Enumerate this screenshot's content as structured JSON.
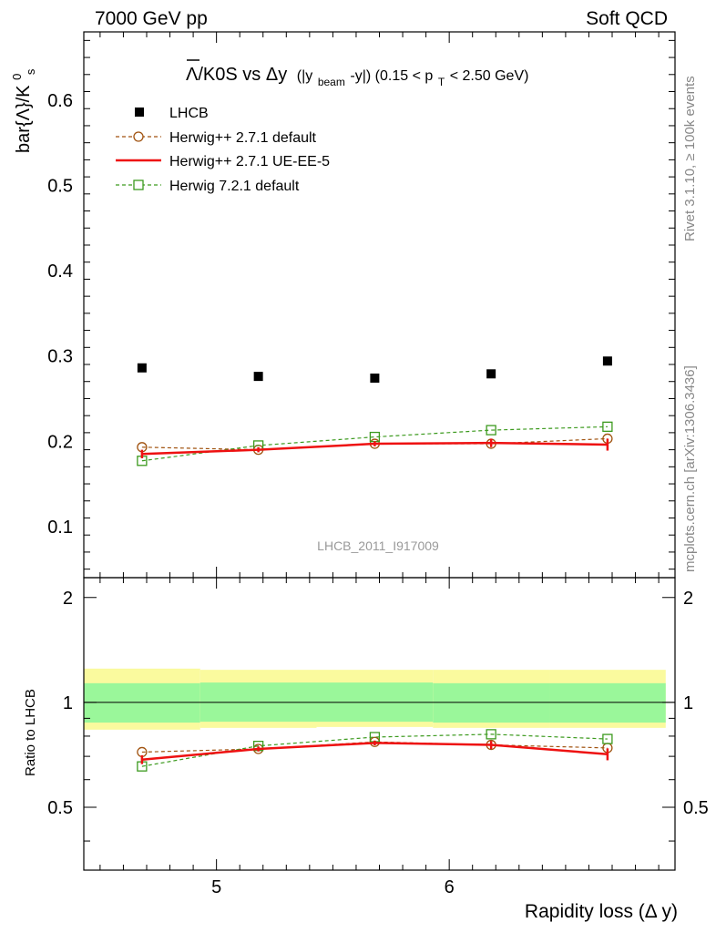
{
  "header": {
    "left": "7000 GeV pp",
    "right": "Soft QCD"
  },
  "side_labels": {
    "rivet": "Rivet 3.1.10, ≥ 100k events",
    "mcplots": "mcplots.cern.ch [arXiv:1306.3436]"
  },
  "chart_data": {
    "type": "scatter",
    "title_main": "Λ/K0S vs Δy",
    "title_sub": "(|y",
    "title_sub_index": "beam",
    "title_sub_rest": "-y|) (0.15 < p",
    "title_pt_index": "T",
    "title_tail": " < 2.50 GeV)",
    "ylabel_main": "bar{Λ}/K",
    "ylabel_sup": "0",
    "ylabel_sub": "s",
    "xlabel": "Rapidity loss (Δ y)",
    "ratio_ylabel": "Ratio to LHCB",
    "watermark": "LHCB_2011_I917009",
    "xlim": [
      4.43,
      6.97
    ],
    "ylim": [
      0.04,
      0.68
    ],
    "ratio_ylim": [
      0.33,
      2.28
    ],
    "x_ticks": [
      "5",
      "6"
    ],
    "y_ticks": [
      "0.1",
      "0.2",
      "0.3",
      "0.4",
      "0.5",
      "0.6"
    ],
    "ratio_ticks": [
      "0.5",
      "1",
      "2"
    ],
    "x_bins": [
      4.43,
      4.93,
      5.43,
      5.93,
      6.43,
      6.93
    ],
    "x": [
      4.68,
      5.18,
      5.68,
      6.18,
      6.68
    ],
    "series": [
      {
        "name": "LHCB",
        "values": [
          0.286,
          0.276,
          0.274,
          0.279,
          0.294
        ],
        "color": "#000000",
        "style": "data"
      },
      {
        "name": "Herwig++ 2.7.1 default",
        "values": [
          0.193,
          0.19,
          0.197,
          0.197,
          0.203
        ],
        "color": "#a0520f",
        "style": "circle-dashed"
      },
      {
        "name": "Herwig++ 2.7.1 UE-EE-5",
        "values": [
          0.185,
          0.19,
          0.197,
          0.198,
          0.196
        ],
        "errors": [
          0.005,
          0.003,
          0.003,
          0.005,
          0.007
        ],
        "color": "#ee1111",
        "style": "solid"
      },
      {
        "name": "Herwig 7.2.1 default",
        "values": [
          0.177,
          0.195,
          0.205,
          0.213,
          0.217
        ],
        "color": "#3c9a1e",
        "style": "square-dashed"
      }
    ],
    "ratio_series": [
      {
        "name": "Herwig++ 2.7.1 default",
        "values": [
          0.72,
          0.735,
          0.77,
          0.755,
          0.74
        ]
      },
      {
        "name": "Herwig++ 2.7.1 UE-EE-5",
        "values": [
          0.685,
          0.735,
          0.765,
          0.755,
          0.71
        ],
        "errors": [
          0.02,
          0.012,
          0.012,
          0.02,
          0.028
        ]
      },
      {
        "name": "Herwig 7.2.1 default",
        "values": [
          0.655,
          0.75,
          0.795,
          0.81,
          0.785
        ]
      }
    ],
    "band_inner": [
      [
        0.875,
        1.135
      ],
      [
        0.88,
        1.14
      ],
      [
        0.88,
        1.14
      ],
      [
        0.875,
        1.135
      ],
      [
        0.875,
        1.135
      ]
    ],
    "band_outer": [
      [
        0.835,
        1.25
      ],
      [
        0.845,
        1.24
      ],
      [
        0.85,
        1.24
      ],
      [
        0.845,
        1.24
      ],
      [
        0.845,
        1.24
      ]
    ],
    "colors": {
      "band_inner": "#9af79a",
      "band_outer": "#fafa9e"
    }
  }
}
